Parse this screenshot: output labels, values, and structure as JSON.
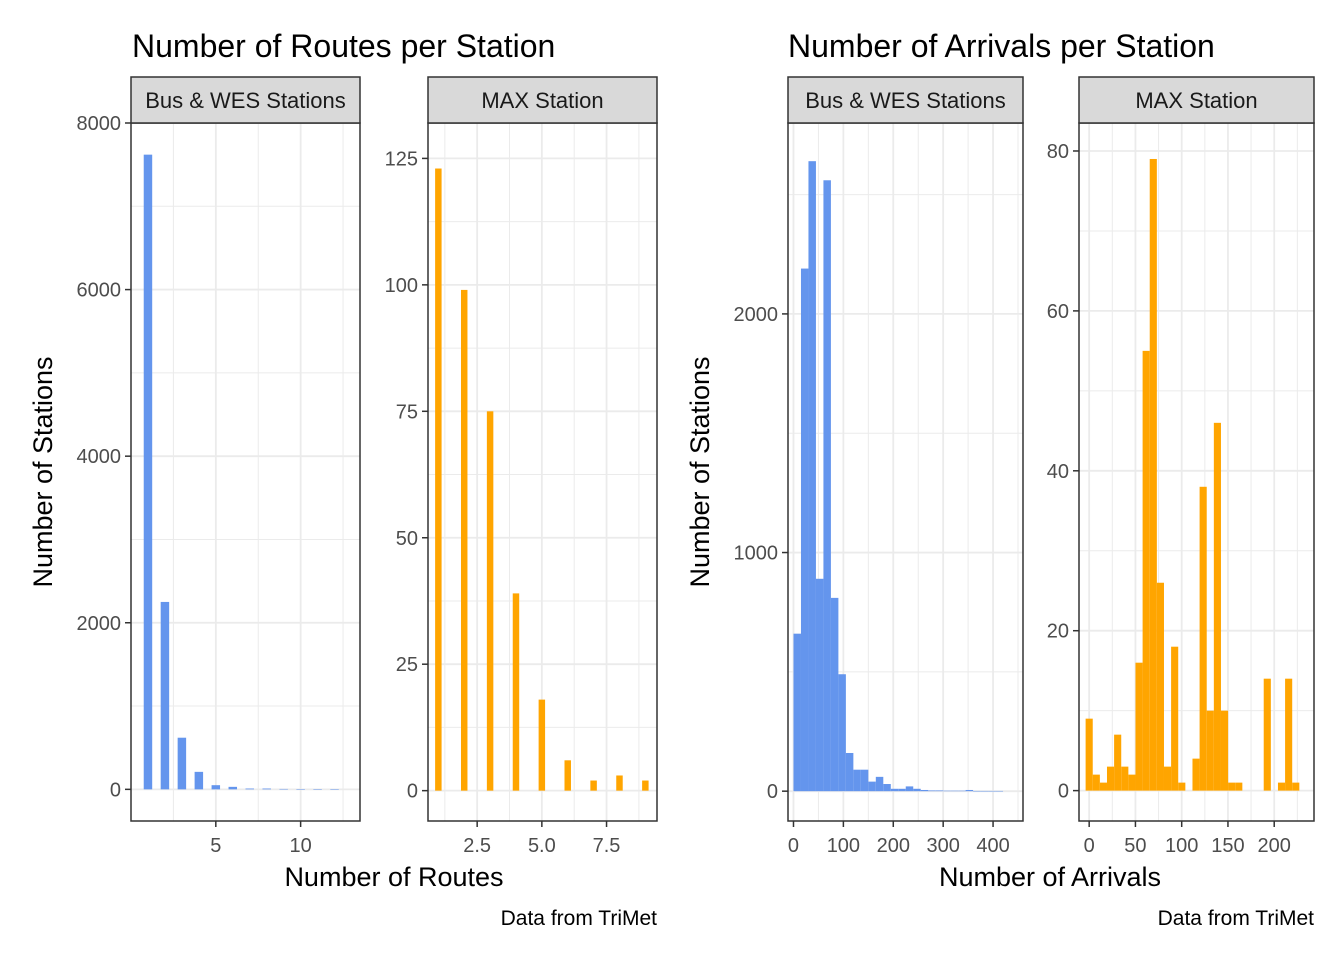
{
  "colors": {
    "bus": "#6495ED",
    "max": "#FFA500",
    "grid": "#ebebeb",
    "strip_bg": "#d9d9d9",
    "panel_border": "#333333"
  },
  "chart_data": [
    {
      "type": "bar",
      "title": "Number of Routes per Station",
      "xlabel": "Number of Routes",
      "ylabel": "Number of Stations",
      "caption": "Data from TriMet",
      "facets": [
        {
          "strip": "Bus & WES Stations",
          "color": "bus",
          "xlim": [
            0,
            13.5
          ],
          "ylim": [
            -380,
            8000
          ],
          "xticks": [
            {
              "v": 5,
              "label": "5"
            },
            {
              "v": 10,
              "label": "10"
            }
          ],
          "yticks": [
            {
              "v": 0,
              "label": "0"
            },
            {
              "v": 2000,
              "label": "2000"
            },
            {
              "v": 4000,
              "label": "4000"
            },
            {
              "v": 6000,
              "label": "6000"
            },
            {
              "v": 8000,
              "label": "8000"
            }
          ],
          "yminor": [
            1000,
            3000,
            5000,
            7000
          ],
          "xminor": [
            2.5,
            7.5,
            12.5
          ],
          "bar_width": 0.5,
          "x": [
            1,
            2,
            3,
            4,
            5,
            6,
            7,
            8,
            9,
            10,
            11,
            12
          ],
          "values": [
            7620,
            2250,
            620,
            210,
            50,
            30,
            10,
            10,
            5,
            2,
            1,
            1
          ]
        },
        {
          "strip": "MAX Station",
          "color": "max",
          "xlim": [
            0.6,
            9.45
          ],
          "ylim": [
            -6,
            132
          ],
          "xticks": [
            {
              "v": 2.5,
              "label": "2.5"
            },
            {
              "v": 5,
              "label": "5.0"
            },
            {
              "v": 7.5,
              "label": "7.5"
            }
          ],
          "yticks": [
            {
              "v": 0,
              "label": "0"
            },
            {
              "v": 25,
              "label": "25"
            },
            {
              "v": 50,
              "label": "50"
            },
            {
              "v": 75,
              "label": "75"
            },
            {
              "v": 100,
              "label": "100"
            },
            {
              "v": 125,
              "label": "125"
            }
          ],
          "yminor": [
            12.5,
            37.5,
            62.5,
            87.5,
            112.5
          ],
          "xminor": [
            1.25,
            3.75,
            6.25,
            8.75
          ],
          "bar_width": 0.25,
          "x": [
            1,
            2,
            3,
            4,
            5,
            6,
            7,
            8,
            9
          ],
          "values": [
            123,
            99,
            75,
            39,
            18,
            6,
            2,
            3,
            2
          ]
        }
      ]
    },
    {
      "type": "bar",
      "title": "Number of Arrivals per Station",
      "xlabel": "Number of Arrivals",
      "ylabel": "Number of Stations",
      "caption": "Data from TriMet",
      "facets": [
        {
          "strip": "Bus & WES Stations",
          "color": "bus",
          "xlim": [
            -11,
            460
          ],
          "ylim": [
            -125,
            2800
          ],
          "xticks": [
            {
              "v": 0,
              "label": "0"
            },
            {
              "v": 100,
              "label": "100"
            },
            {
              "v": 200,
              "label": "200"
            },
            {
              "v": 300,
              "label": "300"
            },
            {
              "v": 400,
              "label": "400"
            }
          ],
          "yticks": [
            {
              "v": 0,
              "label": "0"
            },
            {
              "v": 1000,
              "label": "1000"
            },
            {
              "v": 2000,
              "label": "2000"
            }
          ],
          "yminor": [
            500,
            1500,
            2500
          ],
          "xminor": [
            50,
            150,
            250,
            350,
            450
          ],
          "bar_width": 15,
          "x": [
            7.5,
            22.5,
            37.5,
            52.5,
            67.5,
            82.5,
            97.5,
            112.5,
            127.5,
            142.5,
            157.5,
            172.5,
            187.5,
            202.5,
            217.5,
            232.5,
            247.5,
            262.5,
            277.5,
            292.5,
            307.5,
            322.5,
            337.5,
            352.5,
            367.5,
            382.5,
            397.5,
            412.5
          ],
          "values": [
            660,
            2190,
            2640,
            890,
            2560,
            810,
            490,
            160,
            90,
            90,
            40,
            60,
            30,
            10,
            10,
            20,
            10,
            5,
            3,
            3,
            2,
            2,
            2,
            5,
            1,
            1,
            1,
            1
          ]
        },
        {
          "strip": "MAX Station",
          "color": "max",
          "xlim": [
            -11,
            243
          ],
          "ylim": [
            -3.8,
            83.5
          ],
          "xticks": [
            {
              "v": 0,
              "label": "0"
            },
            {
              "v": 50,
              "label": "50"
            },
            {
              "v": 100,
              "label": "100"
            },
            {
              "v": 150,
              "label": "150"
            },
            {
              "v": 200,
              "label": "200"
            }
          ],
          "yticks": [
            {
              "v": 0,
              "label": "0"
            },
            {
              "v": 20,
              "label": "20"
            },
            {
              "v": 40,
              "label": "40"
            },
            {
              "v": 60,
              "label": "60"
            },
            {
              "v": 80,
              "label": "80"
            }
          ],
          "yminor": [
            10,
            30,
            50,
            70
          ],
          "xminor": [
            25,
            75,
            125,
            175,
            225
          ],
          "bar_width": 7.7,
          "x": [
            0,
            7.7,
            15.4,
            23.1,
            30.8,
            38.5,
            46.2,
            53.9,
            61.6,
            69.3,
            77,
            84.7,
            92.4,
            100.1,
            107.8,
            115.5,
            123.2,
            130.9,
            138.6,
            146.3,
            154,
            161.7,
            169.4,
            177.1,
            184.8,
            192.5,
            200.2,
            207.9,
            215.6,
            223.3
          ],
          "values": [
            9,
            2,
            1,
            3,
            7,
            3,
            2,
            16,
            55,
            79,
            26,
            3,
            18,
            1,
            0,
            4,
            38,
            10,
            46,
            10,
            1,
            1,
            0,
            0,
            0,
            14,
            0,
            1,
            14,
            1
          ]
        }
      ]
    }
  ]
}
